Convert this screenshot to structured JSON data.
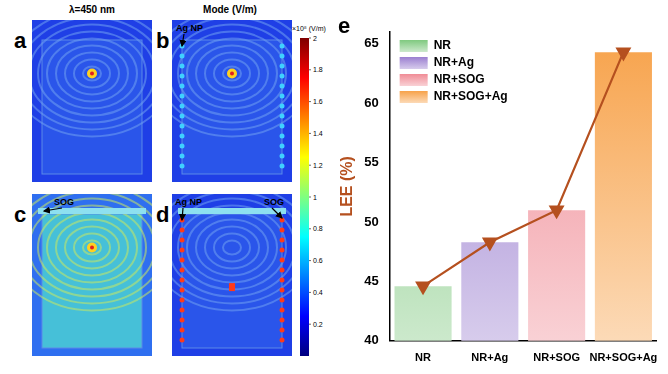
{
  "chart_data": {
    "type": "bar",
    "annotations": [
      "e"
    ],
    "categories": [
      "NR",
      "NR+Ag",
      "NR+SOG",
      "NR+SOG+Ag"
    ],
    "y_label": "LEE (%)",
    "ylim": [
      40,
      66
    ],
    "yticks": [
      40,
      45,
      50,
      55,
      60,
      65
    ],
    "legend": "upper left",
    "grid": false,
    "series": [
      {
        "type": "bar",
        "colors": [
          "#7fc97f",
          "#9b7fd0",
          "#f08c96",
          "#f7a24a"
        ],
        "values": [
          44.6,
          48.3,
          51.0,
          64.3
        ]
      },
      {
        "type": "line",
        "color": "#b5501f",
        "marker": "triangle-down",
        "values": [
          44.6,
          48.3,
          51.0,
          64.3
        ]
      }
    ]
  },
  "field_maps": {
    "title": "λ=450 nm",
    "quantity": "Mode (V/m)",
    "panels": [
      {
        "label": "a"
      },
      {
        "label": "b",
        "annotations": [
          "Ag NP"
        ]
      },
      {
        "label": "c",
        "annotations": [
          "SOG"
        ]
      },
      {
        "label": "d",
        "annotations": [
          "Ag NP",
          "SOG"
        ]
      }
    ],
    "colorbar": {
      "label": "×10⁸ (V/m)",
      "range": [
        0,
        2
      ],
      "ticks": [
        0.2,
        0.4,
        0.6,
        0.8,
        1,
        1.2,
        1.4,
        1.6,
        1.8,
        2
      ]
    }
  }
}
